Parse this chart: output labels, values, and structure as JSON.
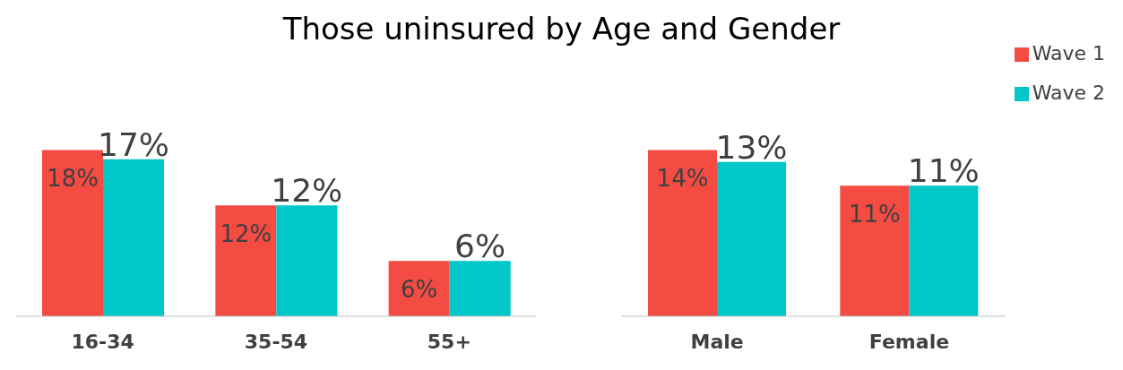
{
  "chart_data": [
    {
      "type": "bar",
      "title": "Those uninsured by Age and Gender",
      "categories": [
        "16-34",
        "35-54",
        "55+"
      ],
      "series": [
        {
          "color": "#f44b42",
          "values": [
            18,
            12,
            6
          ],
          "value_labels": [
            "18%",
            "12%",
            "6%"
          ]
        },
        {
          "color": "#00c8c8",
          "values": [
            17,
            12,
            6
          ],
          "value_labels": [
            "17%",
            "12%",
            "6%"
          ]
        }
      ],
      "legend": false,
      "grid": false
    },
    {
      "type": "bar",
      "categories": [
        "Male",
        "Female"
      ],
      "series": [
        {
          "name": "Wave 1",
          "color": "#f44b42",
          "values": [
            14,
            11
          ],
          "value_labels": [
            "14%",
            "11%"
          ]
        },
        {
          "name": "Wave 2",
          "color": "#00c8c8",
          "values": [
            13,
            11
          ],
          "value_labels": [
            "13%",
            "11%"
          ]
        }
      ],
      "legend": "top right",
      "grid": false
    }
  ]
}
